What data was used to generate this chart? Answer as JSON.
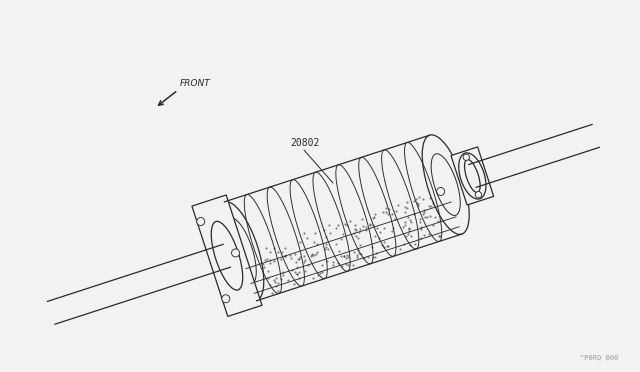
{
  "bg_color": "#f2f2f2",
  "line_color": "#2a2a2a",
  "label_20802": "20802",
  "front_label": "FRONT",
  "watermark": "^P0RQ 000",
  "fig_width": 6.4,
  "fig_height": 3.72,
  "dpi": 100
}
